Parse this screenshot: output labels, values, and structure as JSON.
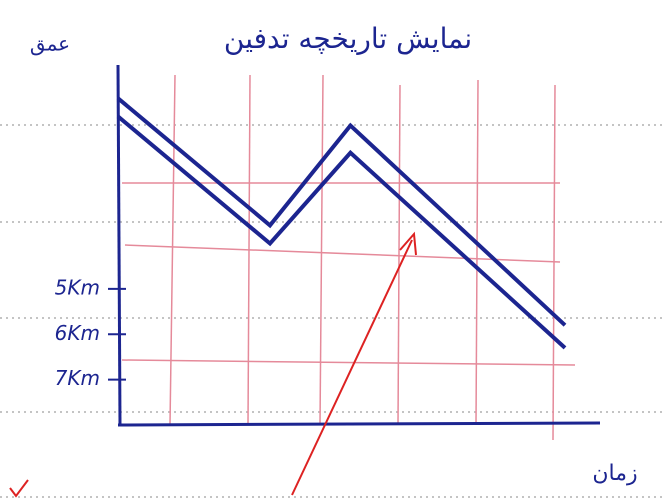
{
  "chart_data": {
    "type": "line",
    "title": "نمایش تاریخچه تدفین",
    "y_label": "عمق",
    "x_label": "زمان",
    "x": [
      0,
      3.4,
      5.2,
      10
    ],
    "xlim": [
      0,
      10
    ],
    "ylim": [
      0,
      8
    ],
    "y_inverted": true,
    "yticks": [
      {
        "value": 5,
        "label": "5Km"
      },
      {
        "value": 6,
        "label": "6Km"
      },
      {
        "value": 7,
        "label": "7Km"
      }
    ],
    "series": [
      {
        "color": "#1c2590",
        "values": [
          0.8,
          3.6,
          1.4,
          5.8
        ]
      },
      {
        "color": "#1c2590",
        "values": [
          1.2,
          4.0,
          2.0,
          6.3
        ]
      }
    ]
  }
}
